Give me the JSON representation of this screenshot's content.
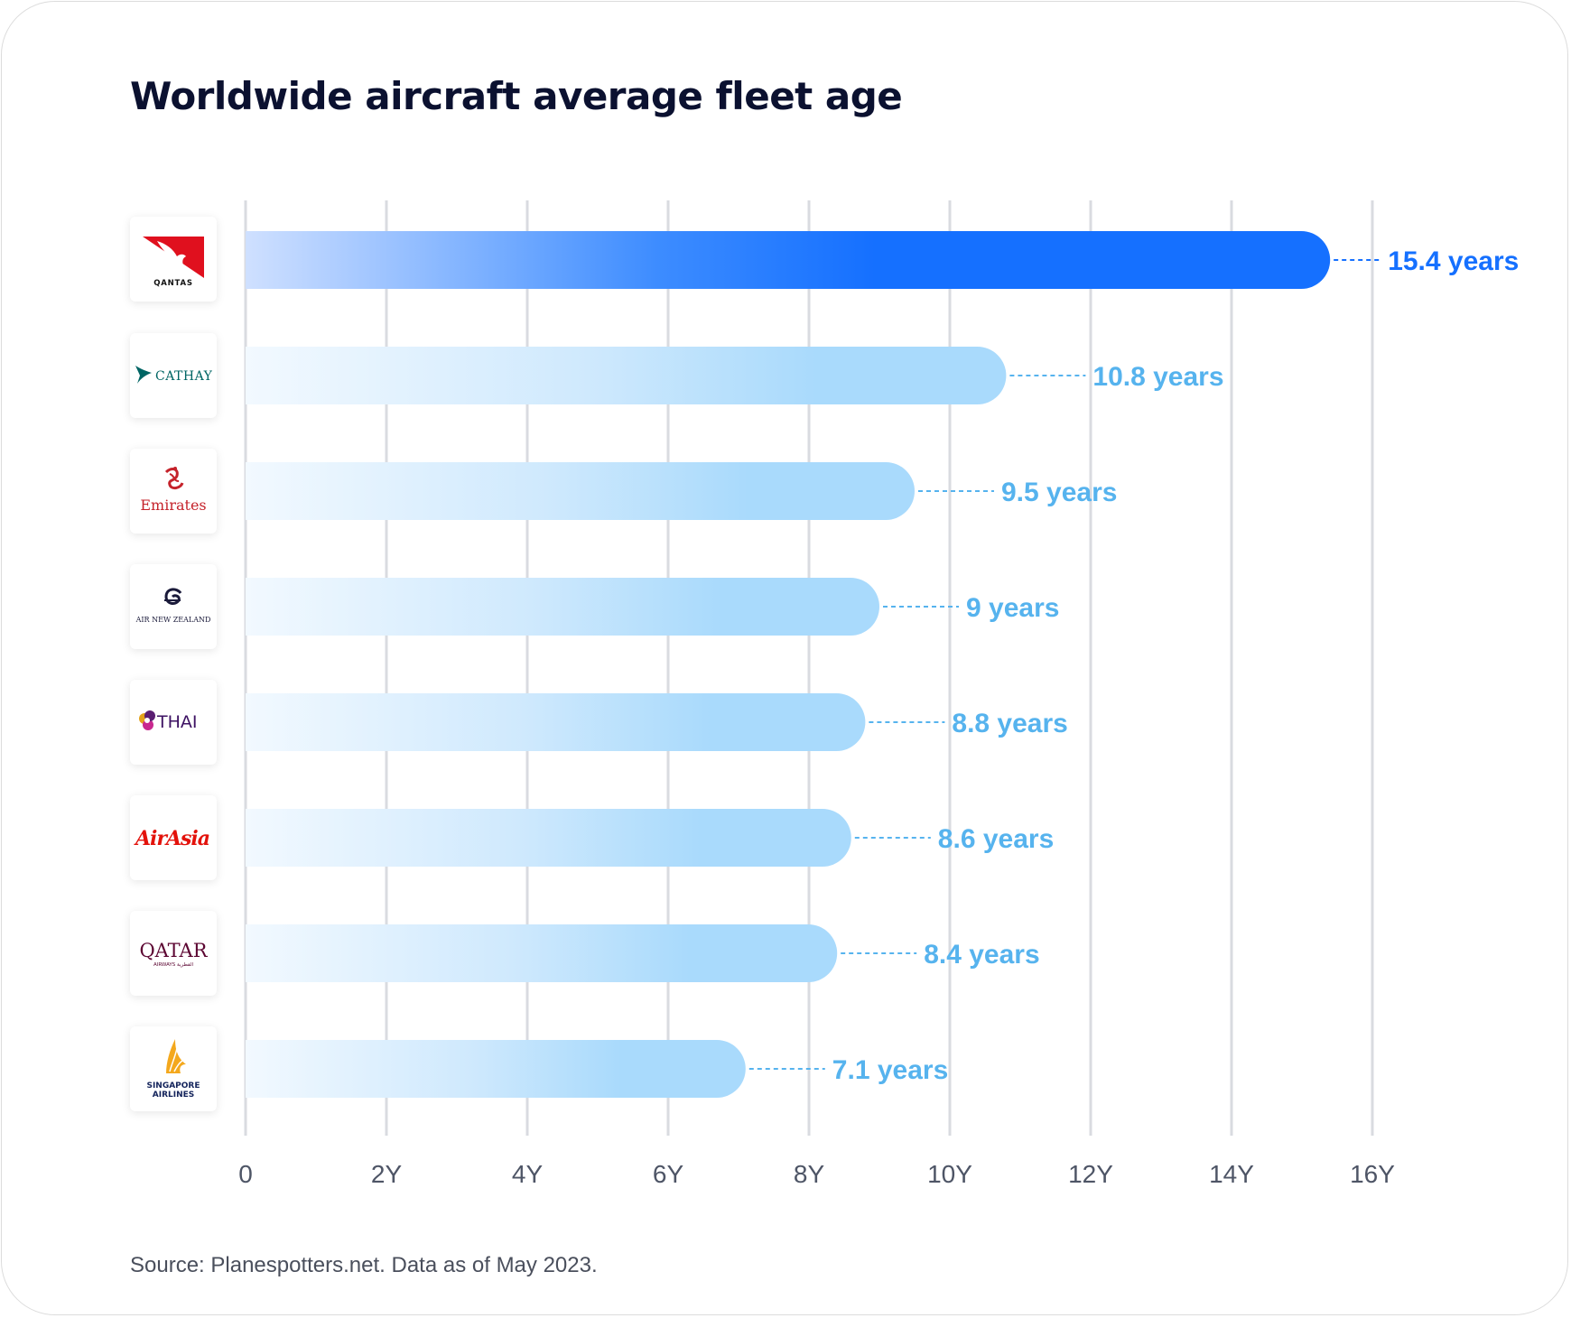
{
  "title": "Worldwide aircraft average fleet age",
  "source": "Source: Planespotters.net. Data as of May 2023.",
  "colors": {
    "highlight": "#1570ff",
    "bar": "#a9dafc",
    "label": "#56b3ee",
    "highlight_label": "#1570ff",
    "grid": "#d9dbe0",
    "tick": "#4e5566"
  },
  "airlines": [
    {
      "name": "Qantas",
      "logo_text": "QANTAS",
      "icon": "qantas-kangaroo-icon"
    },
    {
      "name": "Cathay",
      "logo_text": "CATHAY",
      "icon": "cathay-brushwing-icon"
    },
    {
      "name": "Emirates",
      "logo_text": "Emirates",
      "icon": "emirates-calligraphy-icon"
    },
    {
      "name": "Air New Zealand",
      "logo_text": "AIR NEW ZEALAND",
      "icon": "koru-icon"
    },
    {
      "name": "Thai",
      "logo_text": "THAI",
      "icon": "thai-orchid-icon"
    },
    {
      "name": "AirAsia",
      "logo_text": "AirAsia",
      "icon": "airasia-wordmark-icon"
    },
    {
      "name": "Qatar",
      "logo_text": "QATAR",
      "logo_subtext": "AIRWAYS القطرية",
      "icon": "qatar-oryx-icon"
    },
    {
      "name": "Singapore Airlines",
      "logo_text": "SINGAPORE",
      "logo_subtext": "AIRLINES",
      "icon": "singapore-bird-icon"
    }
  ],
  "chart_data": {
    "type": "bar",
    "orientation": "horizontal",
    "title": "Worldwide aircraft average fleet age",
    "categories": [
      "Qantas",
      "Cathay",
      "Emirates",
      "Air New Zealand",
      "Thai",
      "AirAsia",
      "Qatar",
      "Singapore Airlines"
    ],
    "values": [
      15.4,
      10.8,
      9.5,
      9,
      8.8,
      8.6,
      8.4,
      7.1
    ],
    "value_labels": [
      "15.4 years",
      "10.8 years",
      "9.5 years",
      "9 years",
      "8.8 years",
      "8.6 years",
      "8.4 years",
      "7.1 years"
    ],
    "unit": "years",
    "xlim": [
      0,
      16
    ],
    "xticks": [
      0,
      2,
      4,
      6,
      8,
      10,
      12,
      14,
      16
    ],
    "xtick_labels": [
      "0",
      "2Y",
      "4Y",
      "6Y",
      "8Y",
      "10Y",
      "12Y",
      "14Y",
      "16Y"
    ],
    "highlighted_category": "Qantas",
    "grid": true,
    "xlabel": "",
    "ylabel": ""
  }
}
